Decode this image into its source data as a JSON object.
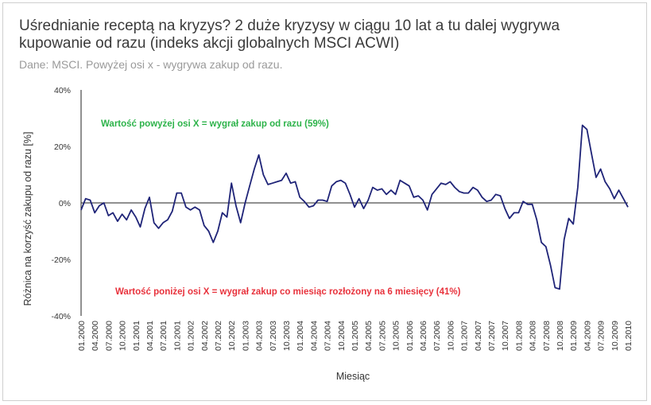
{
  "chart_data": {
    "type": "line",
    "title": "Uśrednianie receptą na kryzys? 2 duże kryzysy w ciągu 10 lat a tu dalej wygrywa kupowanie od razu (indeks akcji globalnych MSCI ACWI)",
    "subtitle": "Dane: MSCI. Powyżej osi x - wygrywa zakup od razu.",
    "xlabel": "Miesiąc",
    "ylabel": "Różnica na korzyść zakupu od razu [%]",
    "ylim": [
      -40,
      40
    ],
    "yticks": [
      -40,
      -20,
      0,
      20,
      40
    ],
    "ytick_labels": [
      "-40%",
      "-20%",
      "0%",
      "20%",
      "40%"
    ],
    "xtick_labels": [
      "01.2000",
      "04.2000",
      "07.2000",
      "10.2000",
      "01.2001",
      "04.2001",
      "07.2001",
      "10.2001",
      "01.2002",
      "04.2002",
      "07.2002",
      "10.2002",
      "01.2003",
      "04.2003",
      "07.2003",
      "10.2003",
      "01.2004",
      "04.2004",
      "07.2004",
      "10.2004",
      "01.2005",
      "04.2005",
      "07.2005",
      "10.2005",
      "01.2006",
      "04.2006",
      "07.2006",
      "10.2006",
      "01.2007",
      "04.2007",
      "07.2007",
      "10.2007",
      "01.2008",
      "04.2008",
      "07.2008",
      "10.2008",
      "01.2009",
      "04.2009",
      "07.2009",
      "10.2009",
      "01.2010"
    ],
    "color": "#1f2478",
    "annotations": [
      {
        "text": "Wartość powyżej osi X = wygrał zakup od razu (59%)",
        "color": "#2db34a"
      },
      {
        "text": "Wartość poniżej osi X = wygrał zakup co miesiąc rozłożony na 6 miesięcy (41%)",
        "color": "#e8323c"
      }
    ],
    "series": [
      {
        "values": [
          -2.5,
          1.5,
          1.0,
          -3.5,
          -1.0,
          0.0,
          -4.5,
          -3.5,
          -6.5,
          -4.0,
          -6.0,
          -2.5,
          -5.0,
          -8.5,
          -2.0,
          2.0,
          -7.0,
          -9.0,
          -7.0,
          -6.0,
          -3.0,
          3.5,
          3.5,
          -1.5,
          -2.5,
          -1.5,
          -2.5,
          -8.0,
          -10.0,
          -14.0,
          -10.0,
          -3.5,
          -5.0,
          7.0,
          -1.0,
          -7.0,
          0.0,
          6.0,
          12.0,
          17.0,
          10.0,
          6.5,
          7.0,
          7.5,
          8.0,
          10.5,
          7.0,
          7.5,
          2.0,
          0.5,
          -1.5,
          -1.0,
          1.0,
          1.0,
          0.5,
          6.0,
          7.5,
          8.0,
          7.0,
          3.0,
          -1.5,
          1.5,
          -2.0,
          1.0,
          5.5,
          4.5,
          5.0,
          3.0,
          4.5,
          3.0,
          8.0,
          7.0,
          6.0,
          2.0,
          2.5,
          1.0,
          -2.5,
          3.0,
          5.0,
          7.0,
          6.5,
          7.5,
          5.5,
          4.0,
          3.5,
          3.5,
          5.5,
          4.5,
          2.0,
          0.5,
          1.0,
          3.0,
          2.5,
          -2.0,
          -5.5,
          -3.5,
          -3.5,
          0.5,
          -0.5,
          -0.5,
          -6.0,
          -14.0,
          -15.5,
          -22.0,
          -30.0,
          -30.5,
          -13.0,
          -5.5,
          -7.5,
          5.5,
          27.5,
          26.0,
          17.5,
          9.0,
          12.0,
          7.5,
          5.0,
          1.5,
          4.5,
          1.5,
          -1.5
        ]
      }
    ]
  }
}
